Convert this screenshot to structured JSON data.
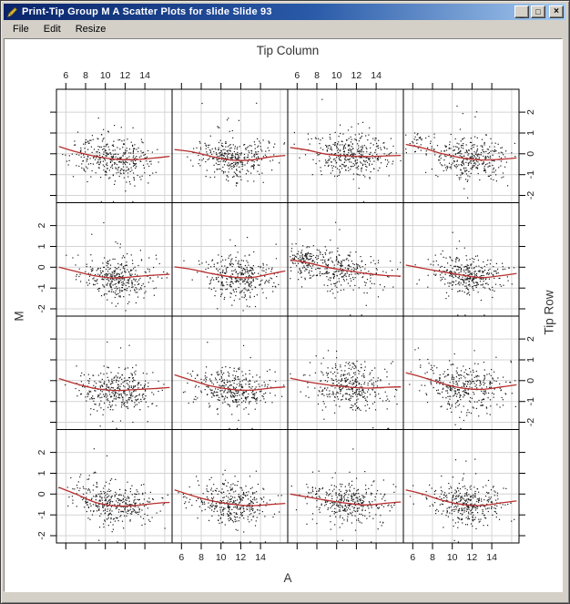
{
  "window": {
    "title": "Print-Tip Group M A Scatter Plots for slide Slide 93",
    "icon": "pen-icon",
    "controls": {
      "minimize": "_",
      "maximize": "□",
      "close": "×"
    }
  },
  "menu": {
    "items": [
      "File",
      "Edit",
      "Resize"
    ]
  },
  "chart_data": {
    "type": "scatter",
    "layout": "4x4-lattice",
    "title": "Print-Tip Group M A Scatter Plots for slide Slide 93",
    "top_axis_label": "Tip Column",
    "bottom_axis_label": "A",
    "left_axis_label": "M",
    "right_axis_label": "Tip Row",
    "x_ticks": [
      6,
      8,
      10,
      12,
      14
    ],
    "y_ticks": [
      -2,
      -1,
      0,
      1,
      2
    ],
    "grid_x": [
      6,
      8,
      10,
      12,
      14,
      16
    ],
    "grid_y": [
      -2,
      -1,
      0,
      1,
      2
    ],
    "xlim": [
      5.05,
      16.75
    ],
    "ylim": [
      -2.35,
      3.1
    ],
    "grid": true,
    "legend": "none",
    "point_color": "#1a1a1a",
    "curve_color": "#b82e2e",
    "gridline_color": "#d4d4d4",
    "border_color": "#000000",
    "x_label_cols_top": [
      0,
      2
    ],
    "x_label_cols_bottom": [
      1,
      3
    ],
    "y_label_rows_left": [
      1,
      3
    ],
    "y_label_rows_right": [
      0,
      2
    ],
    "curve_x": [
      5.3,
      7,
      9,
      11,
      13,
      15,
      16.5
    ],
    "panels": [
      {
        "row": 1,
        "col": 1,
        "seed": 101,
        "n": 350,
        "x_center": 11.0,
        "x_sd": 2.0,
        "y_sd": 0.55,
        "outliers": 7,
        "curve": [
          0.35,
          0.1,
          -0.12,
          -0.26,
          -0.28,
          -0.2,
          -0.12
        ],
        "cluster": null
      },
      {
        "row": 1,
        "col": 2,
        "seed": 102,
        "n": 340,
        "x_center": 11.3,
        "x_sd": 1.9,
        "y_sd": 0.5,
        "outliers": 6,
        "curve": [
          0.2,
          0.1,
          -0.12,
          -0.3,
          -0.3,
          -0.15,
          -0.08
        ],
        "cluster": null
      },
      {
        "row": 1,
        "col": 3,
        "seed": 103,
        "n": 360,
        "x_center": 11.4,
        "x_sd": 1.9,
        "y_sd": 0.5,
        "outliers": 6,
        "curve": [
          0.3,
          0.18,
          -0.02,
          -0.1,
          -0.13,
          -0.1,
          -0.08
        ],
        "cluster": null
      },
      {
        "row": 1,
        "col": 4,
        "seed": 104,
        "n": 340,
        "x_center": 11.7,
        "x_sd": 1.9,
        "y_sd": 0.5,
        "outliers": 6,
        "curve": [
          0.45,
          0.28,
          0.0,
          -0.2,
          -0.3,
          -0.26,
          -0.2
        ],
        "cluster": {
          "n": 30,
          "x": 6.4,
          "x_sd": 0.6,
          "y": 0.55,
          "y_sd": 0.3
        }
      },
      {
        "row": 2,
        "col": 1,
        "seed": 201,
        "n": 340,
        "x_center": 11.4,
        "x_sd": 1.8,
        "y_sd": 0.5,
        "outliers": 5,
        "curve": [
          0.0,
          -0.2,
          -0.42,
          -0.52,
          -0.45,
          -0.38,
          -0.34
        ],
        "cluster": null
      },
      {
        "row": 2,
        "col": 2,
        "seed": 202,
        "n": 340,
        "x_center": 11.7,
        "x_sd": 1.8,
        "y_sd": 0.5,
        "outliers": 5,
        "curve": [
          0.02,
          -0.1,
          -0.3,
          -0.46,
          -0.5,
          -0.32,
          -0.18
        ],
        "cluster": null
      },
      {
        "row": 2,
        "col": 3,
        "seed": 203,
        "n": 300,
        "x_center": 10.4,
        "x_sd": 2.2,
        "y_sd": 0.5,
        "outliers": 5,
        "curve": [
          0.35,
          0.22,
          0.0,
          -0.16,
          -0.3,
          -0.4,
          -0.43
        ],
        "cluster": {
          "n": 95,
          "x": 6.7,
          "x_sd": 0.65,
          "y": 0.3,
          "y_sd": 0.28
        }
      },
      {
        "row": 2,
        "col": 4,
        "seed": 204,
        "n": 340,
        "x_center": 11.5,
        "x_sd": 1.8,
        "y_sd": 0.5,
        "outliers": 5,
        "curve": [
          0.1,
          -0.05,
          -0.22,
          -0.38,
          -0.5,
          -0.4,
          -0.3
        ],
        "cluster": null
      },
      {
        "row": 3,
        "col": 1,
        "seed": 301,
        "n": 350,
        "x_center": 11.0,
        "x_sd": 2.0,
        "y_sd": 0.5,
        "outliers": 6,
        "curve": [
          0.1,
          -0.15,
          -0.38,
          -0.47,
          -0.43,
          -0.38,
          -0.33
        ],
        "cluster": null
      },
      {
        "row": 3,
        "col": 2,
        "seed": 302,
        "n": 350,
        "x_center": 11.4,
        "x_sd": 1.9,
        "y_sd": 0.5,
        "outliers": 6,
        "curve": [
          0.28,
          0.02,
          -0.26,
          -0.42,
          -0.46,
          -0.36,
          -0.3
        ],
        "cluster": null
      },
      {
        "row": 3,
        "col": 3,
        "seed": 303,
        "n": 350,
        "x_center": 11.6,
        "x_sd": 1.9,
        "y_sd": 0.55,
        "outliers": 6,
        "curve": [
          0.12,
          -0.05,
          -0.2,
          -0.3,
          -0.36,
          -0.32,
          -0.3
        ],
        "cluster": null
      },
      {
        "row": 3,
        "col": 4,
        "seed": 304,
        "n": 350,
        "x_center": 11.2,
        "x_sd": 2.1,
        "y_sd": 0.55,
        "outliers": 6,
        "curve": [
          0.38,
          0.16,
          -0.14,
          -0.36,
          -0.42,
          -0.3,
          -0.2
        ],
        "cluster": null
      },
      {
        "row": 4,
        "col": 1,
        "seed": 401,
        "n": 350,
        "x_center": 10.8,
        "x_sd": 2.1,
        "y_sd": 0.5,
        "outliers": 6,
        "curve": [
          0.32,
          0.0,
          -0.4,
          -0.57,
          -0.55,
          -0.45,
          -0.4
        ],
        "cluster": null
      },
      {
        "row": 4,
        "col": 2,
        "seed": 402,
        "n": 350,
        "x_center": 11.2,
        "x_sd": 2.0,
        "y_sd": 0.5,
        "outliers": 6,
        "curve": [
          0.2,
          -0.06,
          -0.32,
          -0.48,
          -0.56,
          -0.5,
          -0.45
        ],
        "cluster": null
      },
      {
        "row": 4,
        "col": 3,
        "seed": 403,
        "n": 350,
        "x_center": 11.3,
        "x_sd": 2.0,
        "y_sd": 0.5,
        "outliers": 6,
        "curve": [
          0.0,
          -0.14,
          -0.3,
          -0.44,
          -0.52,
          -0.44,
          -0.38
        ],
        "cluster": null
      },
      {
        "row": 4,
        "col": 4,
        "seed": 404,
        "n": 350,
        "x_center": 11.5,
        "x_sd": 1.9,
        "y_sd": 0.5,
        "outliers": 6,
        "curve": [
          0.2,
          0.0,
          -0.3,
          -0.5,
          -0.55,
          -0.42,
          -0.33
        ],
        "cluster": null
      }
    ]
  }
}
